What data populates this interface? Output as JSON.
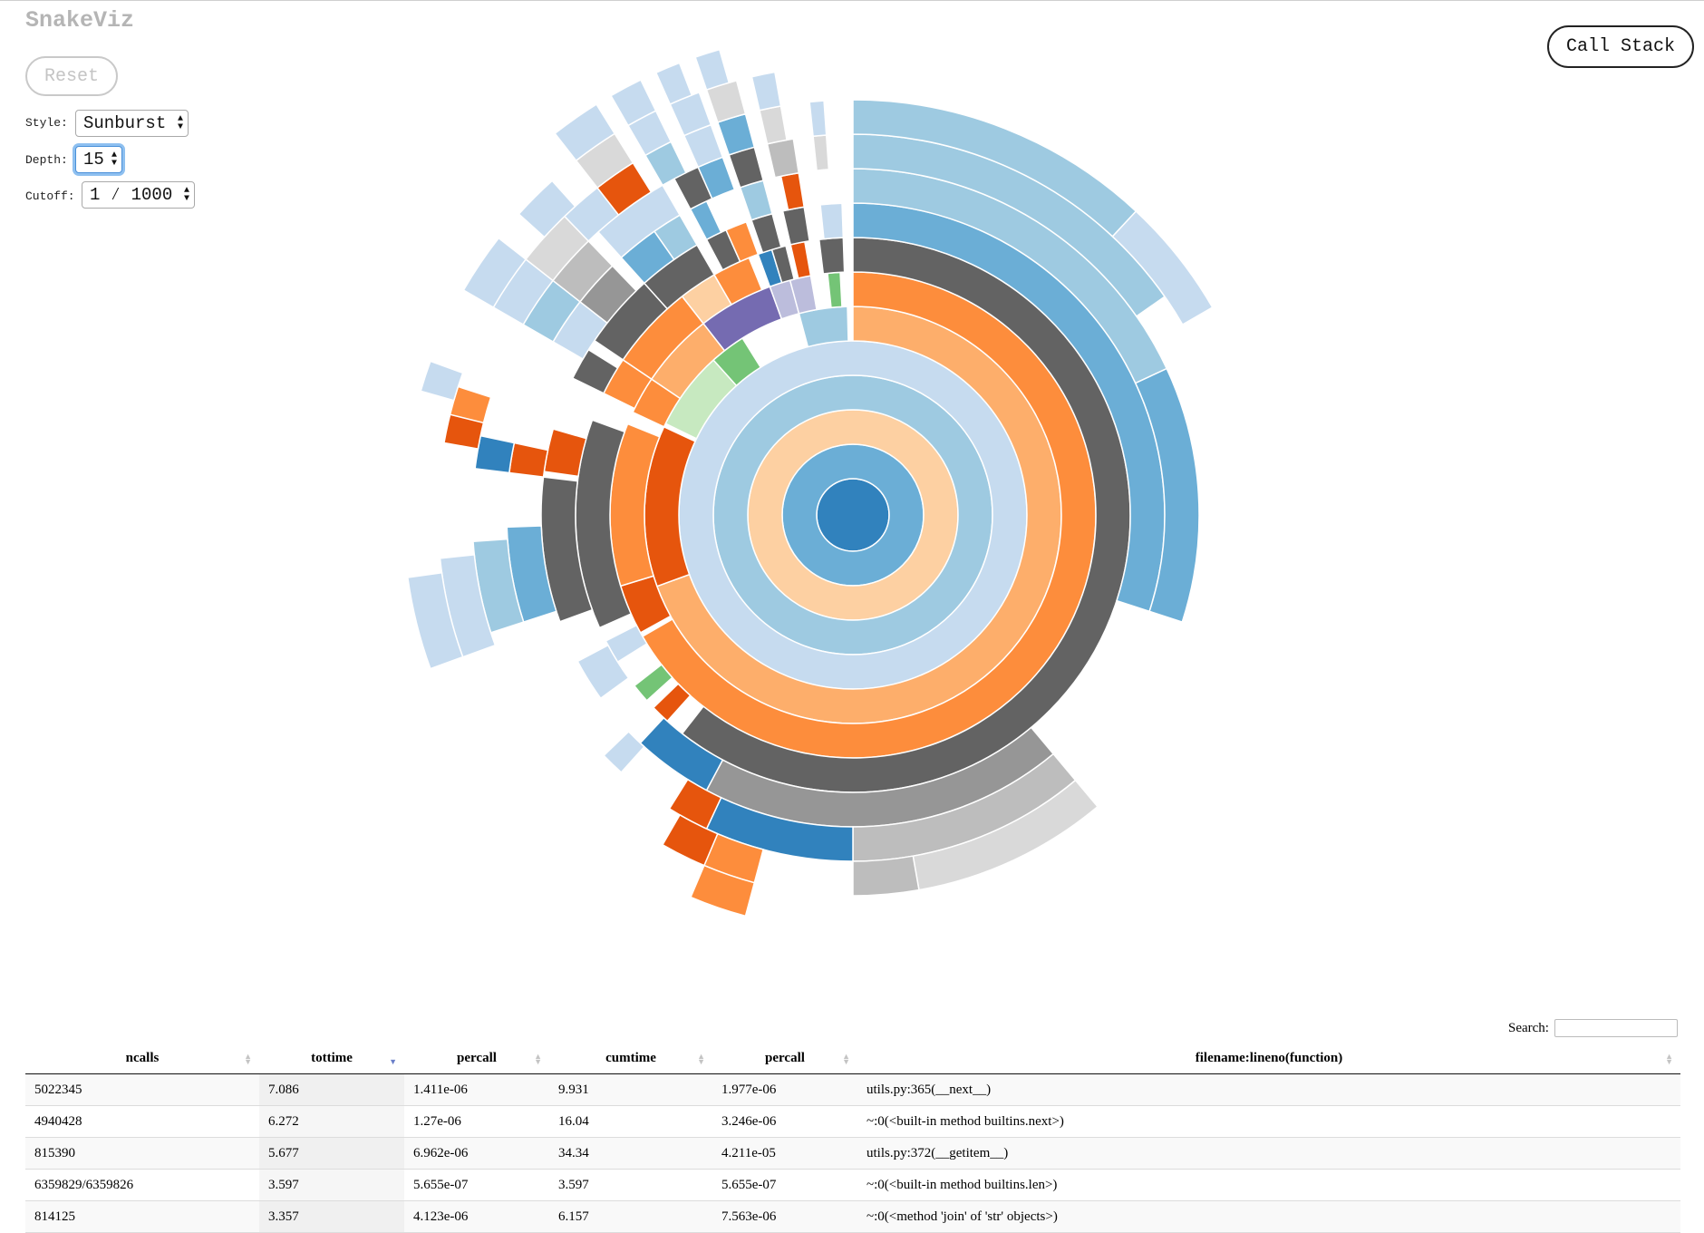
{
  "app": {
    "title": "SnakeViz"
  },
  "controls": {
    "reset_label": "Reset",
    "style_label": "Style:",
    "style_value": "Sunburst",
    "depth_label": "Depth:",
    "depth_value": "15",
    "cutoff_label": "Cutoff:",
    "cutoff_value": "1 ⁄ 1000",
    "call_stack_label": "Call Stack"
  },
  "sunburst": {
    "palette": {
      "blue_dark": "#3182bd",
      "blue_mid": "#6baed6",
      "blue_light": "#9ecae1",
      "blue_pale": "#c6dbef",
      "orange_dark": "#e6550d",
      "orange_mid": "#fd8d3c",
      "orange_light": "#fdae6b",
      "orange_pale": "#fdd0a2",
      "gray_dark": "#636363",
      "gray_mid": "#969696",
      "gray_light": "#bdbdbd",
      "gray_pale": "#d9d9d9",
      "green_mid": "#74c476",
      "green_pale": "#c7e9c0",
      "purple_dark": "#756bb1",
      "purple_light": "#bcbddc"
    }
  },
  "table": {
    "search_label": "Search:",
    "columns": [
      "ncalls",
      "tottime",
      "percall",
      "cumtime",
      "percall",
      "filename:lineno(function)"
    ],
    "sorted_column": "tottime",
    "rows": [
      [
        "5022345",
        "7.086",
        "1.411e-06",
        "9.931",
        "1.977e-06",
        "utils.py:365(__next__)"
      ],
      [
        "4940428",
        "6.272",
        "1.27e-06",
        "16.04",
        "3.246e-06",
        "~:0(<built-in method builtins.next>)"
      ],
      [
        "815390",
        "5.677",
        "6.962e-06",
        "34.34",
        "4.211e-05",
        "utils.py:372(__getitem__)"
      ],
      [
        "6359829/6359826",
        "3.597",
        "5.655e-07",
        "3.597",
        "5.655e-07",
        "~:0(<built-in method builtins.len>)"
      ],
      [
        "814125",
        "3.357",
        "4.123e-06",
        "6.157",
        "7.563e-06",
        "~:0(<method 'join' of 'str' objects>)"
      ]
    ]
  }
}
